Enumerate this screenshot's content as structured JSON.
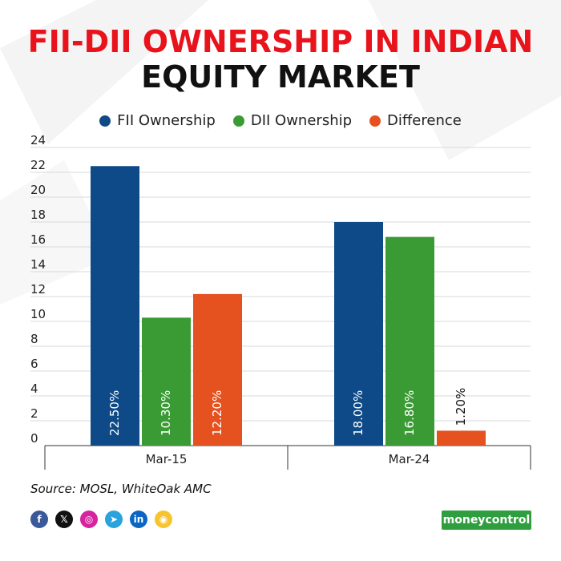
{
  "title_line1": "FII-DII OWNERSHIP IN INDIAN",
  "title_line2": "EQUITY MARKET",
  "source": "Source: MOSL, WhiteOak AMC",
  "brand": {
    "part1": "money",
    "part2": "control"
  },
  "social_icons": [
    {
      "name": "facebook-icon",
      "glyph": "f",
      "color": "#3b5998"
    },
    {
      "name": "x-icon",
      "glyph": "𝕏",
      "color": "#111111"
    },
    {
      "name": "instagram-icon",
      "glyph": "◎",
      "color": "#d6249f"
    },
    {
      "name": "telegram-icon",
      "glyph": "➤",
      "color": "#2aa3dd"
    },
    {
      "name": "linkedin-icon",
      "glyph": "in",
      "color": "#0a66c2"
    },
    {
      "name": "koo-icon",
      "glyph": "◉",
      "color": "#f7c32e"
    }
  ],
  "chart_data": {
    "type": "bar",
    "categories": [
      "Mar-15",
      "Mar-24"
    ],
    "series": [
      {
        "name": "FII Ownership",
        "color": "#0d4a87",
        "values": [
          22.5,
          18.0
        ],
        "labels": [
          "22.50%",
          "18.00%"
        ]
      },
      {
        "name": "DII Ownership",
        "color": "#3a9b35",
        "values": [
          10.3,
          16.8
        ],
        "labels": [
          "10.30%",
          "16.80%"
        ]
      },
      {
        "name": "Difference",
        "color": "#e5521f",
        "values": [
          12.2,
          1.2
        ],
        "labels": [
          "12.20%",
          "1.20%"
        ]
      }
    ],
    "ylim": [
      0,
      24
    ],
    "yticks": [
      0,
      2,
      4,
      6,
      8,
      10,
      12,
      14,
      16,
      18,
      20,
      22,
      24
    ],
    "grid": true,
    "legend_position": "top-center"
  }
}
